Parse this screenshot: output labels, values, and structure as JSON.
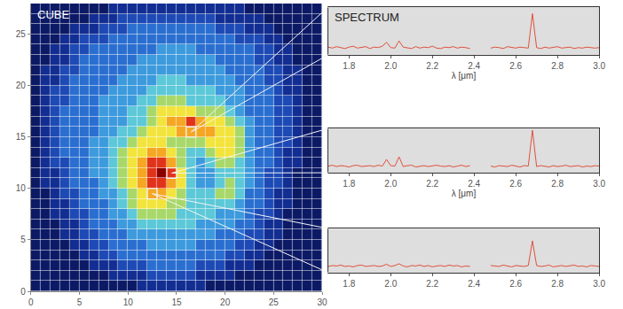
{
  "chart_data": [
    {
      "type": "heatmap",
      "title": "CUBE",
      "x": [
        0.5,
        1.5,
        2.5,
        3.5,
        4.5,
        5.5,
        6.5,
        7.5,
        8.5,
        9.5,
        10.5,
        11.5,
        12.5,
        13.5,
        14.5,
        15.5,
        16.5,
        17.5,
        18.5,
        19.5,
        20.5,
        21.5,
        22.5,
        23.5,
        24.5,
        25.5,
        26.5,
        27.5,
        28.5,
        29.5
      ],
      "y": [
        0.5,
        1.5,
        2.5,
        3.5,
        4.5,
        5.5,
        6.5,
        7.5,
        8.5,
        9.5,
        10.5,
        11.5,
        12.5,
        13.5,
        14.5,
        15.5,
        16.5,
        17.5,
        18.5,
        19.5,
        20.5,
        21.5,
        22.5,
        23.5,
        24.5,
        25.5,
        26.5,
        27.5
      ],
      "cells": [
        [
          0,
          0,
          0,
          0,
          0,
          0,
          0,
          0,
          0,
          0,
          0,
          1,
          1,
          1,
          1,
          1,
          1,
          1,
          0,
          0,
          0,
          0,
          0,
          0,
          0,
          0,
          0,
          0,
          0,
          0
        ],
        [
          0,
          0,
          0,
          0,
          0,
          0,
          0,
          0,
          1,
          1,
          1,
          1,
          2,
          2,
          2,
          2,
          2,
          1,
          1,
          1,
          1,
          0,
          0,
          0,
          0,
          0,
          0,
          0,
          0,
          0
        ],
        [
          0,
          0,
          0,
          0,
          0,
          0,
          1,
          1,
          1,
          2,
          2,
          2,
          3,
          3,
          3,
          3,
          3,
          2,
          2,
          2,
          1,
          1,
          1,
          0,
          0,
          0,
          0,
          0,
          0,
          0
        ],
        [
          0,
          0,
          0,
          0,
          0,
          1,
          1,
          2,
          2,
          3,
          3,
          3,
          3,
          3,
          3,
          3,
          3,
          3,
          3,
          3,
          2,
          2,
          1,
          1,
          0,
          0,
          0,
          0,
          0,
          0
        ],
        [
          0,
          0,
          0,
          0,
          1,
          1,
          2,
          2,
          3,
          3,
          3,
          3,
          4,
          4,
          4,
          4,
          4,
          3,
          3,
          3,
          3,
          2,
          2,
          1,
          1,
          0,
          0,
          0,
          0,
          0
        ],
        [
          0,
          0,
          0,
          1,
          1,
          2,
          2,
          3,
          3,
          3,
          4,
          4,
          4,
          4,
          4,
          4,
          4,
          4,
          4,
          3,
          3,
          3,
          2,
          2,
          1,
          1,
          0,
          0,
          0,
          0
        ],
        [
          0,
          0,
          0,
          1,
          1,
          2,
          3,
          3,
          3,
          4,
          4,
          5,
          5,
          5,
          5,
          5,
          5,
          4,
          4,
          4,
          4,
          3,
          3,
          2,
          1,
          1,
          0,
          0,
          0,
          0
        ],
        [
          0,
          0,
          1,
          1,
          2,
          2,
          3,
          3,
          4,
          4,
          5,
          6,
          6,
          6,
          6,
          5,
          5,
          5,
          5,
          4,
          4,
          4,
          3,
          2,
          2,
          1,
          0,
          0,
          0,
          0
        ],
        [
          0,
          0,
          1,
          1,
          2,
          3,
          3,
          3,
          4,
          5,
          6,
          7,
          7,
          7,
          6,
          6,
          5,
          5,
          5,
          5,
          5,
          4,
          3,
          3,
          2,
          1,
          1,
          0,
          0,
          0
        ],
        [
          0,
          0,
          1,
          2,
          2,
          3,
          3,
          4,
          4,
          5,
          6,
          7,
          8,
          8,
          7,
          6,
          5,
          5,
          5,
          6,
          6,
          5,
          3,
          3,
          2,
          1,
          1,
          0,
          0,
          0
        ],
        [
          0,
          1,
          1,
          2,
          3,
          3,
          3,
          4,
          5,
          6,
          7,
          8,
          9,
          9,
          8,
          7,
          5,
          4,
          4,
          5,
          6,
          5,
          4,
          3,
          2,
          2,
          1,
          0,
          0,
          0
        ],
        [
          0,
          1,
          1,
          2,
          3,
          3,
          4,
          4,
          5,
          6,
          7,
          8,
          9,
          10,
          9,
          7,
          5,
          4,
          4,
          5,
          5,
          5,
          4,
          3,
          2,
          2,
          1,
          0,
          0,
          0
        ],
        [
          0,
          1,
          2,
          2,
          3,
          3,
          4,
          4,
          5,
          6,
          7,
          8,
          9,
          9,
          8,
          6,
          5,
          4,
          5,
          6,
          6,
          5,
          4,
          3,
          3,
          2,
          1,
          1,
          0,
          0
        ],
        [
          0,
          1,
          2,
          3,
          3,
          3,
          4,
          4,
          5,
          6,
          7,
          7,
          8,
          8,
          7,
          6,
          5,
          5,
          6,
          7,
          7,
          6,
          4,
          3,
          3,
          2,
          1,
          1,
          0,
          0
        ],
        [
          0,
          1,
          2,
          3,
          3,
          3,
          4,
          4,
          5,
          5,
          6,
          7,
          7,
          7,
          6,
          6,
          6,
          6,
          7,
          7,
          7,
          6,
          4,
          3,
          3,
          2,
          2,
          1,
          0,
          0
        ],
        [
          0,
          1,
          2,
          3,
          3,
          3,
          3,
          4,
          4,
          5,
          5,
          6,
          7,
          7,
          7,
          8,
          8,
          8,
          8,
          7,
          7,
          6,
          4,
          3,
          3,
          2,
          2,
          1,
          0,
          0
        ],
        [
          0,
          1,
          2,
          3,
          3,
          3,
          3,
          4,
          4,
          4,
          5,
          5,
          6,
          7,
          8,
          8,
          9,
          8,
          7,
          7,
          6,
          5,
          4,
          3,
          3,
          2,
          2,
          1,
          0,
          0
        ],
        [
          0,
          1,
          2,
          3,
          3,
          3,
          3,
          4,
          4,
          4,
          5,
          5,
          6,
          7,
          7,
          7,
          7,
          6,
          6,
          6,
          5,
          4,
          3,
          3,
          3,
          2,
          2,
          1,
          0,
          0
        ],
        [
          0,
          1,
          2,
          2,
          3,
          3,
          3,
          4,
          4,
          4,
          4,
          5,
          5,
          6,
          6,
          6,
          5,
          5,
          5,
          5,
          4,
          4,
          3,
          3,
          3,
          2,
          2,
          1,
          0,
          0
        ],
        [
          0,
          1,
          2,
          2,
          3,
          3,
          3,
          3,
          4,
          4,
          4,
          4,
          5,
          5,
          5,
          5,
          5,
          5,
          5,
          4,
          4,
          4,
          3,
          3,
          3,
          2,
          1,
          1,
          0,
          0
        ],
        [
          0,
          1,
          1,
          2,
          3,
          3,
          3,
          3,
          3,
          4,
          4,
          4,
          4,
          5,
          5,
          5,
          4,
          4,
          4,
          4,
          4,
          3,
          3,
          3,
          2,
          2,
          1,
          1,
          0,
          0
        ],
        [
          0,
          1,
          1,
          2,
          2,
          3,
          3,
          3,
          3,
          3,
          4,
          4,
          4,
          4,
          4,
          4,
          4,
          4,
          4,
          4,
          3,
          3,
          3,
          3,
          2,
          2,
          1,
          1,
          0,
          0
        ],
        [
          0,
          0,
          1,
          1,
          2,
          3,
          3,
          3,
          3,
          3,
          3,
          4,
          4,
          4,
          4,
          4,
          4,
          4,
          4,
          3,
          3,
          3,
          3,
          2,
          2,
          1,
          1,
          0,
          0,
          0
        ],
        [
          0,
          0,
          1,
          1,
          2,
          2,
          3,
          3,
          3,
          3,
          3,
          3,
          3,
          4,
          4,
          4,
          4,
          3,
          3,
          3,
          3,
          3,
          3,
          2,
          2,
          1,
          1,
          0,
          0,
          0
        ],
        [
          0,
          0,
          0,
          1,
          1,
          2,
          2,
          2,
          3,
          3,
          3,
          3,
          3,
          3,
          3,
          3,
          3,
          3,
          3,
          3,
          3,
          2,
          2,
          2,
          1,
          1,
          0,
          0,
          0,
          0
        ],
        [
          0,
          0,
          0,
          0,
          1,
          1,
          1,
          2,
          2,
          2,
          3,
          3,
          3,
          3,
          3,
          3,
          3,
          3,
          3,
          2,
          2,
          2,
          1,
          1,
          1,
          0,
          0,
          0,
          0,
          0
        ],
        [
          0,
          0,
          0,
          0,
          0,
          0,
          1,
          1,
          1,
          2,
          2,
          2,
          2,
          2,
          2,
          2,
          2,
          2,
          2,
          1,
          1,
          1,
          1,
          1,
          0,
          0,
          0,
          0,
          0,
          0
        ],
        [
          0,
          0,
          0,
          0,
          0,
          0,
          0,
          0,
          1,
          1,
          1,
          1,
          1,
          1,
          1,
          1,
          1,
          1,
          1,
          1,
          1,
          1,
          0,
          0,
          0,
          0,
          0,
          0,
          0,
          0
        ]
      ],
      "color_range": [
        0,
        10
      ],
      "selected_pixels": [
        [
          16.5,
          15.5
        ],
        [
          14.5,
          11.5
        ],
        [
          12.5,
          9.5
        ]
      ],
      "xlim": [
        0,
        30
      ],
      "ylim": [
        0,
        28
      ],
      "xticks": [
        0,
        5,
        10,
        15,
        20,
        25,
        30
      ],
      "yticks": [
        0,
        5,
        10,
        15,
        20,
        25
      ],
      "grid": false
    },
    {
      "type": "line",
      "title": "SPECTRUM",
      "x_label": "λ [μm]",
      "color": "#e0503c",
      "x": [
        1.7,
        1.72,
        1.74,
        1.76,
        1.78,
        1.8,
        1.82,
        1.84,
        1.86,
        1.88,
        1.9,
        1.92,
        1.94,
        1.96,
        1.98,
        2,
        2.02,
        2.04,
        2.06,
        2.08,
        2.1,
        2.12,
        2.14,
        2.16,
        2.18,
        2.2,
        2.22,
        2.24,
        2.26,
        2.28,
        2.3,
        2.32,
        2.34,
        2.36,
        2.38,
        2.4,
        2.42,
        2.44,
        2.46,
        2.48,
        2.5,
        2.52,
        2.54,
        2.56,
        2.58,
        2.6,
        2.62,
        2.64,
        2.66,
        2.68,
        2.7,
        2.72,
        2.74,
        2.76,
        2.78,
        2.8,
        2.82,
        2.84,
        2.86,
        2.88,
        2.9,
        2.92,
        2.94,
        2.96,
        2.98,
        3
      ],
      "values": [
        1.6,
        1.4,
        1.7,
        1.5,
        1.3,
        1.6,
        1.8,
        1.4,
        1.5,
        1.7,
        1.3,
        1.6,
        1.5,
        1.8,
        2.6,
        1.5,
        1.4,
        2.9,
        1.6,
        1.5,
        1.3,
        1.7,
        1.4,
        1.6,
        1.5,
        1.8,
        1.4,
        1.3,
        1.6,
        1.5,
        1.7,
        1.4,
        1.6,
        1.5,
        1.3,
        null,
        null,
        null,
        null,
        1.4,
        1.6,
        1.5,
        1.3,
        1.7,
        1.5,
        1.4,
        1.6,
        1.5,
        1.4,
        8.6,
        1.5,
        1.3,
        1.6,
        1.4,
        1.5,
        1.7,
        1.4,
        1.5,
        1.6,
        1.3,
        1.5,
        1.4,
        1.6,
        1.5,
        1.4,
        1.5
      ],
      "xlim": [
        1.7,
        3.0
      ],
      "ylim": [
        0,
        10
      ],
      "xticks": [
        1.8,
        {
          "value": 2,
          "label": "2.0"
        },
        2.2,
        2.4,
        2.6,
        2.8,
        {
          "value": 3,
          "label": "3.0"
        }
      ],
      "tick_labels": "x",
      "grid": false
    },
    {
      "type": "line",
      "x_label": "λ [μm]",
      "color": "#e0503c",
      "x": [
        1.7,
        1.72,
        1.74,
        1.76,
        1.78,
        1.8,
        1.82,
        1.84,
        1.86,
        1.88,
        1.9,
        1.92,
        1.94,
        1.96,
        1.98,
        2,
        2.02,
        2.04,
        2.06,
        2.08,
        2.1,
        2.12,
        2.14,
        2.16,
        2.18,
        2.2,
        2.22,
        2.24,
        2.26,
        2.28,
        2.3,
        2.32,
        2.34,
        2.36,
        2.38,
        2.4,
        2.42,
        2.44,
        2.46,
        2.48,
        2.5,
        2.52,
        2.54,
        2.56,
        2.58,
        2.6,
        2.62,
        2.64,
        2.66,
        2.68,
        2.7,
        2.72,
        2.74,
        2.76,
        2.78,
        2.8,
        2.82,
        2.84,
        2.86,
        2.88,
        2.9,
        2.92,
        2.94,
        2.96,
        2.98,
        3
      ],
      "values": [
        1.5,
        1.7,
        1.4,
        1.6,
        1.5,
        1.3,
        1.6,
        1.7,
        1.4,
        1.5,
        1.6,
        1.4,
        1.7,
        1.5,
        3.0,
        1.6,
        1.5,
        3.6,
        1.4,
        1.6,
        1.7,
        1.3,
        1.5,
        1.6,
        1.4,
        1.5,
        1.7,
        1.5,
        1.4,
        1.6,
        1.3,
        1.5,
        1.7,
        1.4,
        1.6,
        null,
        null,
        null,
        null,
        1.5,
        1.3,
        1.6,
        1.5,
        1.4,
        1.7,
        1.5,
        1.3,
        1.6,
        1.5,
        9.6,
        1.4,
        1.6,
        1.5,
        1.3,
        1.6,
        1.4,
        1.5,
        1.7,
        1.4,
        1.5,
        1.6,
        1.3,
        1.5,
        1.4,
        1.6,
        1.5
      ],
      "xlim": [
        1.7,
        3.0
      ],
      "ylim": [
        0,
        10
      ],
      "xticks": [
        1.8,
        {
          "value": 2,
          "label": "2.0"
        },
        2.2,
        2.4,
        2.6,
        2.8,
        {
          "value": 3,
          "label": "3.0"
        }
      ],
      "tick_labels": "x",
      "grid": false
    },
    {
      "type": "line",
      "color": "#e0503c",
      "x": [
        1.7,
        1.72,
        1.74,
        1.76,
        1.78,
        1.8,
        1.82,
        1.84,
        1.86,
        1.88,
        1.9,
        1.92,
        1.94,
        1.96,
        1.98,
        2,
        2.02,
        2.04,
        2.06,
        2.08,
        2.1,
        2.12,
        2.14,
        2.16,
        2.18,
        2.2,
        2.22,
        2.24,
        2.26,
        2.28,
        2.3,
        2.32,
        2.34,
        2.36,
        2.38,
        2.4,
        2.42,
        2.44,
        2.46,
        2.48,
        2.5,
        2.52,
        2.54,
        2.56,
        2.58,
        2.6,
        2.62,
        2.64,
        2.66,
        2.68,
        2.7,
        2.72,
        2.74,
        2.76,
        2.78,
        2.8,
        2.82,
        2.84,
        2.86,
        2.88,
        2.9,
        2.92,
        2.94,
        2.96,
        2.98,
        3
      ],
      "values": [
        1.4,
        1.6,
        1.5,
        1.7,
        1.4,
        1.5,
        1.3,
        1.6,
        1.7,
        1.4,
        1.5,
        1.6,
        1.4,
        1.5,
        1.9,
        1.4,
        1.6,
        2.0,
        1.5,
        1.3,
        1.6,
        1.5,
        1.7,
        1.4,
        1.6,
        1.3,
        1.5,
        1.6,
        1.4,
        1.7,
        1.5,
        1.6,
        1.3,
        1.5,
        1.4,
        null,
        null,
        null,
        null,
        1.6,
        1.5,
        1.4,
        1.7,
        1.5,
        1.3,
        1.6,
        1.5,
        1.4,
        1.6,
        7.2,
        1.6,
        1.4,
        1.5,
        1.7,
        1.3,
        1.5,
        1.6,
        1.4,
        1.5,
        1.7,
        1.4,
        1.5,
        1.3,
        1.6,
        1.5,
        1.4
      ],
      "xlim": [
        1.7,
        3.0
      ],
      "ylim": [
        0,
        10
      ],
      "xticks": [
        1.8,
        {
          "value": 2,
          "label": "2.0"
        },
        2.2,
        2.4,
        2.6,
        2.8,
        {
          "value": 3,
          "label": "3.0"
        }
      ],
      "tick_labels": "x",
      "grid": false
    }
  ]
}
